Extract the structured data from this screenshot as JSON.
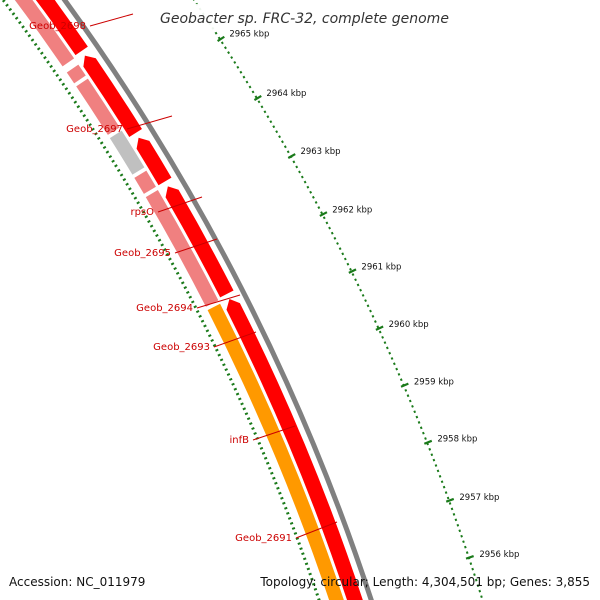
{
  "title": "Geobacter sp. FRC-32, complete genome",
  "footer": {
    "accession": "Accession: NC_011979",
    "summary": "Topology: circular; Length: 4,304,501 bp; Genes: 3,855"
  },
  "colors": {
    "cds": "#ff0000",
    "gene_light": "#f08080",
    "gene_grey": "#c0c0c0",
    "gene_orange": "#ff9900",
    "backbone": "#808080",
    "tick": "#1a7a1a",
    "label": "#cc0000"
  },
  "ticks": [
    {
      "kbp": 2965,
      "label": "2965 kbp"
    },
    {
      "kbp": 2964,
      "label": "2964 kbp"
    },
    {
      "kbp": 2963,
      "label": "2963 kbp"
    },
    {
      "kbp": 2962,
      "label": "2962 kbp"
    },
    {
      "kbp": 2961,
      "label": "2961 kbp"
    },
    {
      "kbp": 2960,
      "label": "2960 kbp"
    },
    {
      "kbp": 2959,
      "label": "2959 kbp"
    },
    {
      "kbp": 2958,
      "label": "2958 kbp"
    },
    {
      "kbp": 2957,
      "label": "2957 kbp"
    },
    {
      "kbp": 2956,
      "label": "2956 kbp"
    }
  ],
  "genes": [
    {
      "name": "Geob_2698",
      "kind": "grey"
    },
    {
      "name": "Geob_2697",
      "kind": "light"
    },
    {
      "name": "rpsO",
      "kind": "light"
    },
    {
      "name": "Geob_2695",
      "kind": "light"
    },
    {
      "name": "Geob_2694",
      "kind": "grey"
    },
    {
      "name": "Geob_2693",
      "kind": "light"
    },
    {
      "name": "infB",
      "kind": "light"
    },
    {
      "name": "Geob_2691",
      "kind": "orange"
    }
  ]
}
